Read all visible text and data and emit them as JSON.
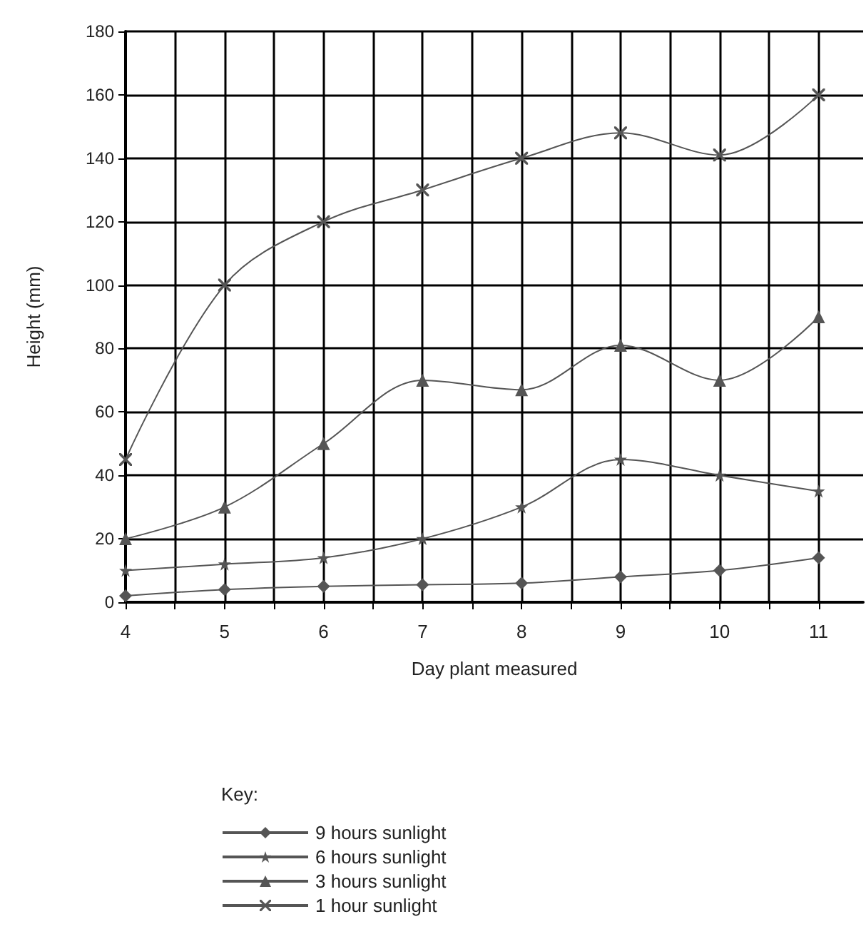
{
  "chart_data": {
    "type": "line",
    "xlabel": "Day plant measured",
    "ylabel": "Height (mm)",
    "legend_title": "Key:",
    "legend": "bottom",
    "grid": true,
    "line_style": "solid",
    "x": [
      4,
      5,
      6,
      7,
      8,
      9,
      10,
      11
    ],
    "xlim": [
      4,
      11.45
    ],
    "xticks": [
      4,
      {
        "value": 4.5,
        "label": null
      },
      5,
      {
        "value": 5.5,
        "label": null
      },
      6,
      {
        "value": 6.5,
        "label": null
      },
      7,
      {
        "value": 7.5,
        "label": null
      },
      8,
      {
        "value": 8.5,
        "label": null
      },
      9,
      {
        "value": 9.5,
        "label": null
      },
      10,
      {
        "value": 10.5,
        "label": null
      },
      11
    ],
    "ylim": [
      0,
      180
    ],
    "yticks": [
      0,
      20,
      40,
      60,
      80,
      100,
      120,
      140,
      160,
      180
    ],
    "series": [
      {
        "name": "9 hours sunlight",
        "color": "#555555",
        "marker": "diamond",
        "values": [
          2,
          4,
          5,
          5.5,
          6,
          8,
          10,
          14
        ]
      },
      {
        "name": "6 hours sunlight",
        "color": "#555555",
        "marker": "star",
        "values": [
          10,
          12,
          14,
          20,
          30,
          45,
          40,
          35
        ]
      },
      {
        "name": "3 hours sunlight",
        "color": "#555555",
        "marker": "triangle",
        "values": [
          20,
          30,
          50,
          70,
          67,
          81,
          70,
          90
        ]
      },
      {
        "name": "1 hour sunlight",
        "color": "#555555",
        "marker": "cross",
        "values": [
          45,
          100,
          120,
          130,
          140,
          148,
          141,
          160
        ]
      }
    ]
  }
}
